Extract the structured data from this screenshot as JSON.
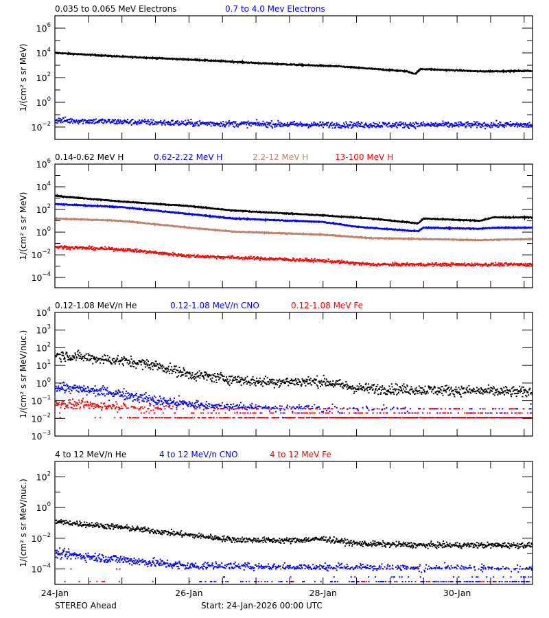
{
  "footer": {
    "spacecraft": "STEREO Ahead",
    "start": "Start: 24-Jan-2026 00:00 UTC"
  },
  "chart_data": [
    {
      "type": "scatter",
      "ylabel": "1/(cm² s sr MeV)",
      "yscale": "log",
      "ylim": [
        0.001,
        10000000.0
      ],
      "ytick_exponents": [
        -2,
        0,
        2,
        4,
        6
      ],
      "xlim": [
        "2026-01-24T00:00",
        "2026-01-31T03:00"
      ],
      "xtick_labels": [
        "24-Jan",
        "26-Jan",
        "28-Jan",
        "30-Jan"
      ],
      "series": [
        {
          "name": "0.035 to 0.065 MeV Electrons",
          "color": "#000000",
          "style": "line",
          "trend": [
            [
              "2026-01-24T00:00",
              10000.0
            ],
            [
              "2026-01-25T00:00",
              5000.0
            ],
            [
              "2026-01-26T06:00",
              2500.0
            ],
            [
              "2026-01-27T06:00",
              1300.0
            ],
            [
              "2026-01-28T06:00",
              800.0
            ],
            [
              "2026-01-29T06:00",
              320.0
            ],
            [
              "2026-01-29T09:00",
              200.0
            ],
            [
              "2026-01-29T11:00",
              500.0
            ],
            [
              "2026-01-30T08:00",
              320.0
            ],
            [
              "2026-01-31T03:00",
              350.0
            ]
          ]
        },
        {
          "name": "0.7 to 4.0 Mev Electrons",
          "color": "#0000ff",
          "style": "points",
          "trend": [
            [
              "2026-01-24T00:00",
              0.035
            ],
            [
              "2026-01-26T00:00",
              0.02
            ],
            [
              "2026-01-28T00:00",
              0.015
            ],
            [
              "2026-01-31T03:00",
              0.015
            ]
          ]
        }
      ]
    },
    {
      "type": "line",
      "ylabel": "1/(cm² s sr MeV)",
      "yscale": "log",
      "ylim": [
        1.26e-05,
        1000000.0
      ],
      "ytick_exponents": [
        -4,
        -2,
        0,
        2,
        4,
        6
      ],
      "xlim": [
        "2026-01-24T00:00",
        "2026-01-31T03:00"
      ],
      "xtick_labels": [
        "24-Jan",
        "26-Jan",
        "28-Jan",
        "30-Jan"
      ],
      "series": [
        {
          "name": "0.14-0.62 MeV H",
          "color": "#000000",
          "style": "line",
          "trend": [
            [
              "2026-01-24T00:00",
              1600.0
            ],
            [
              "2026-01-25T00:00",
              500.0
            ],
            [
              "2026-01-26T00:00",
              200.0
            ],
            [
              "2026-01-26T16:00",
              80.0
            ],
            [
              "2026-01-28T00:00",
              30.0
            ],
            [
              "2026-01-28T17:00",
              16.0
            ],
            [
              "2026-01-29T10:00",
              6
            ],
            [
              "2026-01-29T12:00",
              16.0
            ],
            [
              "2026-01-30T08:00",
              10.0
            ],
            [
              "2026-01-30T13:00",
              20.0
            ],
            [
              "2026-01-31T03:00",
              20.0
            ]
          ]
        },
        {
          "name": "0.62-2.22 MeV H",
          "color": "#0000ff",
          "style": "line",
          "trend": [
            [
              "2026-01-24T00:00",
              300.0
            ],
            [
              "2026-01-25T00:00",
              160.0
            ],
            [
              "2026-01-26T00:00",
              40.0
            ],
            [
              "2026-01-26T16:00",
              16.0
            ],
            [
              "2026-01-28T00:00",
              8
            ],
            [
              "2026-01-28T12:00",
              3
            ],
            [
              "2026-01-29T10:00",
              1.2
            ],
            [
              "2026-01-29T12:00",
              2.5
            ],
            [
              "2026-01-30T08:00",
              2
            ],
            [
              "2026-01-30T13:00",
              2.5
            ],
            [
              "2026-01-31T03:00",
              2.5
            ]
          ]
        },
        {
          "name": "2.2-12 MeV H",
          "color": "#c0806a",
          "style": "line",
          "trend": [
            [
              "2026-01-24T00:00",
              16.0
            ],
            [
              "2026-01-25T00:00",
              10.0
            ],
            [
              "2026-01-26T00:00",
              2.5
            ],
            [
              "2026-01-26T16:00",
              1.1
            ],
            [
              "2026-01-28T00:00",
              0.6
            ],
            [
              "2026-01-28T17:00",
              0.3
            ],
            [
              "2026-01-30T08:00",
              0.2
            ],
            [
              "2026-01-31T03:00",
              0.25
            ]
          ]
        },
        {
          "name": "13-100 MeV H",
          "color": "#ff0000",
          "style": "points",
          "trend": [
            [
              "2026-01-24T00:00",
              0.05
            ],
            [
              "2026-01-25T00:00",
              0.03
            ],
            [
              "2026-01-26T00:00",
              0.008
            ],
            [
              "2026-01-28T00:00",
              0.003
            ],
            [
              "2026-01-28T17:00",
              0.0014
            ],
            [
              "2026-01-31T03:00",
              0.0014
            ]
          ]
        }
      ]
    },
    {
      "type": "scatter",
      "ylabel": "1/(cm² s sr MeV/nuc.)",
      "yscale": "log",
      "ylim": [
        0.001,
        10000.0
      ],
      "ytick_exponents": [
        -3,
        -2,
        -1,
        0,
        1,
        2,
        3,
        4
      ],
      "xlim": [
        "2026-01-24T00:00",
        "2026-01-31T03:00"
      ],
      "xtick_labels": [
        "24-Jan",
        "26-Jan",
        "28-Jan",
        "30-Jan"
      ],
      "series": [
        {
          "name": "0.12-1.08 MeV/n He",
          "color": "#000000",
          "style": "points",
          "floor_levels": [
            0.15,
            0.1,
            0.065
          ],
          "trend": [
            [
              "2026-01-24T00:00",
              40
            ],
            [
              "2026-01-25T00:00",
              18
            ],
            [
              "2026-01-25T12:00",
              10
            ],
            [
              "2026-01-26T00:00",
              3
            ],
            [
              "2026-01-27T00:00",
              1.2
            ],
            [
              "2026-01-28T00:00",
              1.2
            ],
            [
              "2026-01-28T12:00",
              0.5
            ],
            [
              "2026-01-31T03:00",
              0.3
            ]
          ]
        },
        {
          "name": "0.12-1.08 MeV/n CNO",
          "color": "#0000ff",
          "style": "points",
          "floor_levels": [
            0.035,
            0.02,
            0.011
          ],
          "trend": [
            [
              "2026-01-24T00:00",
              0.6
            ],
            [
              "2026-01-25T00:00",
              0.25
            ],
            [
              "2026-01-25T12:00",
              0.1
            ],
            [
              "2026-01-26T12:00",
              0.04
            ],
            [
              "2026-01-31T03:00",
              0.01
            ]
          ]
        },
        {
          "name": "0.12-1.08 MeV Fe",
          "color": "#ff0000",
          "style": "points",
          "floor_levels": [
            0.035,
            0.02,
            0.011
          ],
          "trend": [
            [
              "2026-01-24T00:00",
              0.07
            ],
            [
              "2026-01-25T00:00",
              0.04
            ],
            [
              "2026-01-26T00:00",
              0.015
            ],
            [
              "2026-01-31T03:00",
              0.008
            ]
          ]
        }
      ]
    },
    {
      "type": "scatter",
      "ylabel": "1/(cm² s sr MeV/nuc.)",
      "yscale": "log",
      "ylim": [
        1e-05,
        1000.0
      ],
      "ytick_exponents": [
        -4,
        -2,
        0,
        2
      ],
      "xlim": [
        "2026-01-24T00:00",
        "2026-01-31T03:00"
      ],
      "xtick_labels": [
        "24-Jan",
        "26-Jan",
        "28-Jan",
        "30-Jan"
      ],
      "series": [
        {
          "name": "4 to 12 MeV/n He",
          "color": "#000000",
          "style": "points",
          "trend": [
            [
              "2026-01-24T00:00",
              0.12
            ],
            [
              "2026-01-25T00:00",
              0.05
            ],
            [
              "2026-01-26T00:00",
              0.016
            ],
            [
              "2026-01-26T16:00",
              0.008
            ],
            [
              "2026-01-27T12:00",
              0.007
            ],
            [
              "2026-01-28T00:00",
              0.009
            ],
            [
              "2026-01-28T12:00",
              0.0045
            ],
            [
              "2026-01-29T12:00",
              0.0035
            ],
            [
              "2026-01-31T03:00",
              0.0035
            ]
          ]
        },
        {
          "name": "4 to 12 MeV/n CNO",
          "color": "#0000ff",
          "style": "points",
          "floor_levels": [
            0.0001,
            3e-05,
            1.5e-05
          ],
          "trend": [
            [
              "2026-01-24T00:00",
              0.001
            ],
            [
              "2026-01-25T00:00",
              0.0004
            ],
            [
              "2026-01-26T00:00",
              0.00015
            ],
            [
              "2026-01-31T03:00",
              8e-05
            ]
          ]
        },
        {
          "name": "4 to 12 MeV Fe",
          "color": "#ff0000",
          "style": "points",
          "floor_levels": [
            0.0001,
            1.5e-05
          ],
          "trend": [
            [
              "2026-01-24T00:00",
              2e-05
            ],
            [
              "2026-01-31T03:00",
              1e-05
            ]
          ]
        }
      ]
    }
  ]
}
